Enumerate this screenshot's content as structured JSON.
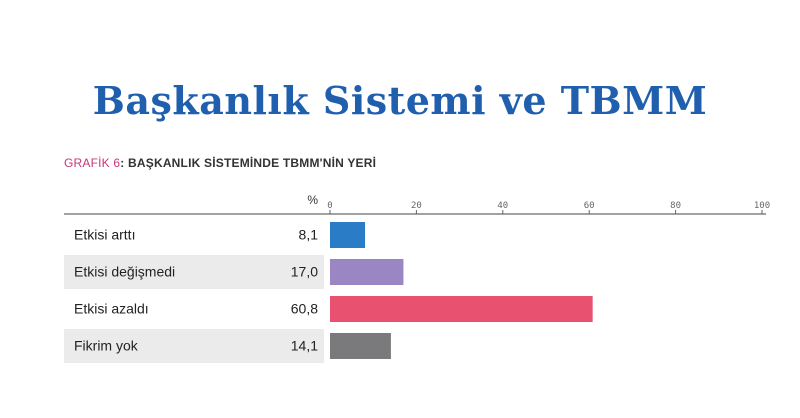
{
  "header": {
    "title": "Başkanlık Sistemi ve TBMM",
    "subtitle_prefix": "GRAFİK 6",
    "subtitle_colon": ":",
    "subtitle_text": " BAŞKANLIK SİSTEMİNDE TBMM'NİN YERİ"
  },
  "chart_data": {
    "type": "bar",
    "orientation": "horizontal",
    "unit_label": "%",
    "categories": [
      "Etkisi arttı",
      "Etkisi değişmedi",
      "Etkisi azaldı",
      "Fikrim yok"
    ],
    "values": [
      8.1,
      17.0,
      60.8,
      14.1
    ],
    "value_labels": [
      "8,1",
      "17,0",
      "60,8",
      "14,1"
    ],
    "colors": [
      "#2a7cc6",
      "#9b86c4",
      "#e8516f",
      "#7a7a7c"
    ],
    "xlim": [
      0,
      100
    ],
    "xticks": [
      0,
      20,
      40,
      60,
      80,
      100
    ],
    "xtick_labels": [
      "0",
      "20",
      "40",
      "60",
      "80",
      "100"
    ],
    "row_shading": [
      "#ffffff",
      "#ebebeb",
      "#ffffff",
      "#ebebeb"
    ]
  }
}
